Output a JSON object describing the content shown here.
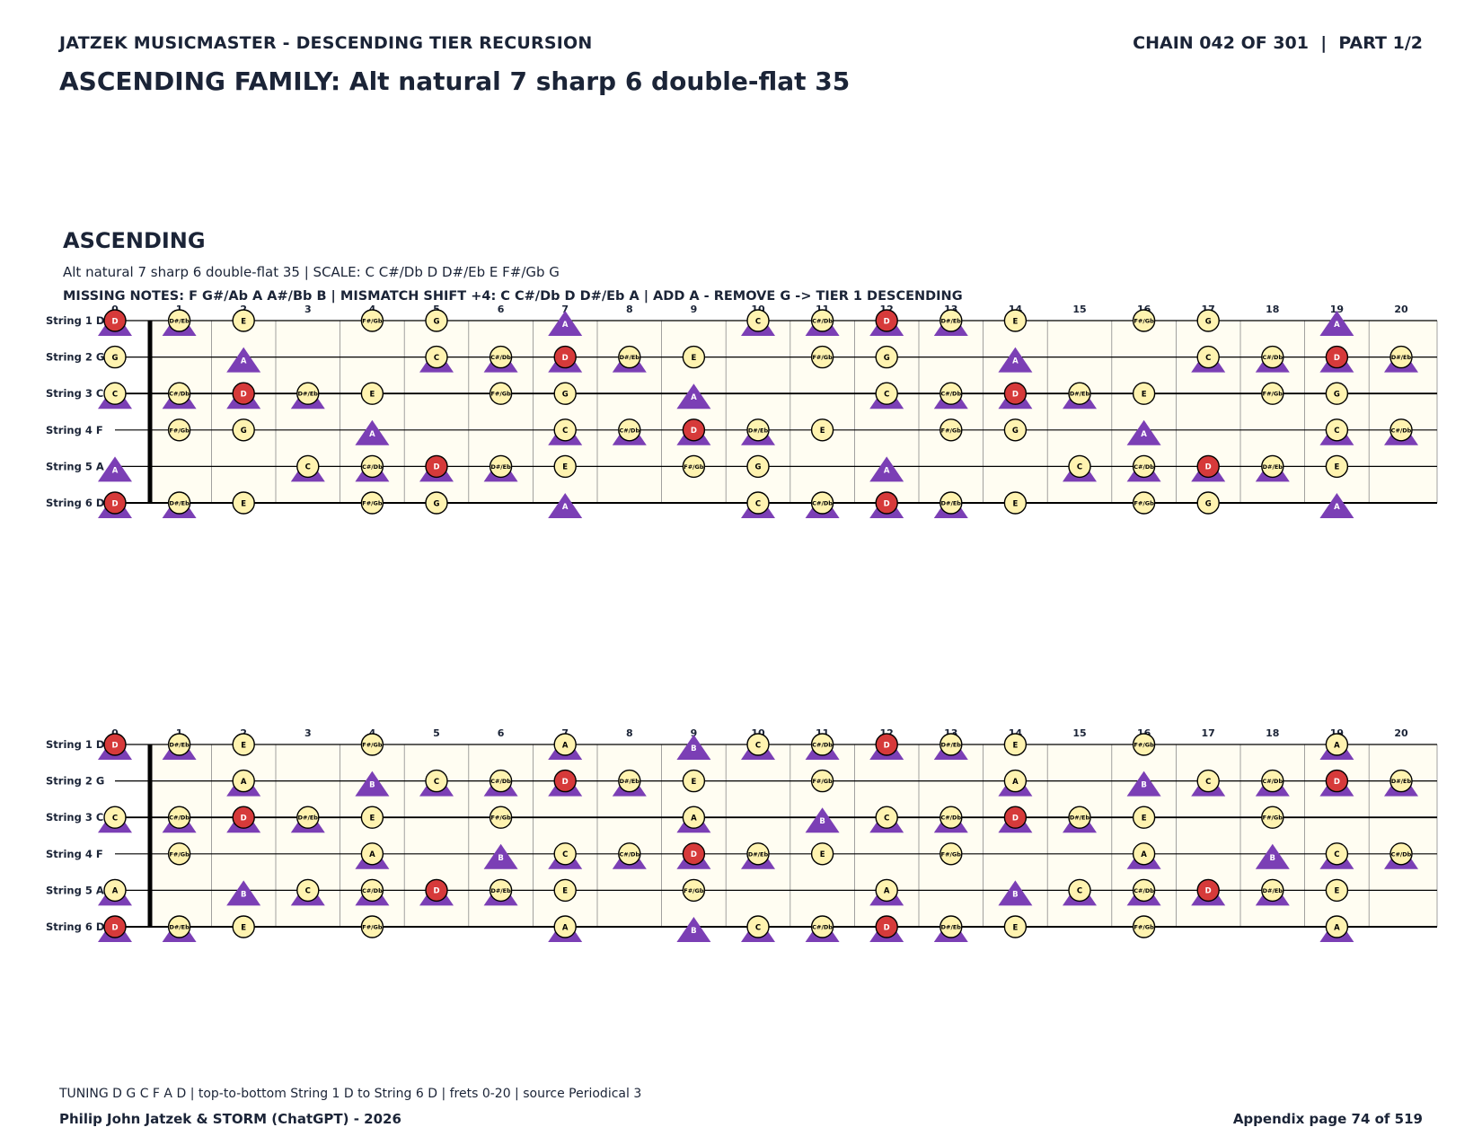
{
  "header": {
    "left": "JATZEK MUSICMASTER - DESCENDING TIER RECURSION",
    "right": "CHAIN 042 OF 301  |  PART 1/2"
  },
  "title": "ASCENDING FAMILY: Alt natural 7 sharp 6 double-flat 35",
  "section": {
    "heading": "ASCENDING",
    "line1": "Alt natural 7 sharp 6 double-flat 35  |  SCALE: C C#/Db D D#/Eb E F#/Gb G",
    "line2": "MISSING NOTES: F G#/Ab A A#/Bb B  |  MISMATCH SHIFT +4: C C#/Db D D#/Eb A  |  ADD A - REMOVE G -> TIER 1 DESCENDING"
  },
  "footer": {
    "tuning": "TUNING D G C F A D | top-to-bottom String 1 D to String 6 D | frets 0-20 | source Periodical 3",
    "authors": "Philip John Jatzek & STORM (ChatGPT) - 2026",
    "page": "Appendix page 74 of 519"
  },
  "legend_colors": {
    "scale_note_fill": "#fff3b0",
    "root_note_fill": "#d63a3a",
    "target_triangle": "#7b3fb5",
    "board_bg": "#fffdf2"
  },
  "fretboards": [
    {
      "strings": [
        {
          "label": "String 1 D",
          "tuning": "D"
        },
        {
          "label": "String 2 G",
          "tuning": "G"
        },
        {
          "label": "String 3 C",
          "tuning": "C"
        },
        {
          "label": "String 4 F",
          "tuning": "F"
        },
        {
          "label": "String 5 A",
          "tuning": "A"
        },
        {
          "label": "String 6 D",
          "tuning": "D"
        }
      ],
      "fret_numbers": [
        "0",
        "1",
        "2",
        "3",
        "4",
        "5",
        "6",
        "7",
        "8",
        "9",
        "10",
        "11",
        "12",
        "13",
        "14",
        "15",
        "16",
        "17",
        "18",
        "19",
        "20"
      ],
      "scale": [
        "C",
        "C#/Db",
        "D",
        "D#/Eb",
        "E",
        "F#/Gb",
        "G"
      ],
      "root": "D",
      "triangle_notes": [
        "A",
        "C",
        "C#/Db",
        "D",
        "D#/Eb"
      ]
    },
    {
      "strings": [
        {
          "label": "String 1 D",
          "tuning": "D"
        },
        {
          "label": "String 2 G",
          "tuning": "G"
        },
        {
          "label": "String 3 C",
          "tuning": "C"
        },
        {
          "label": "String 4 F",
          "tuning": "F"
        },
        {
          "label": "String 5 A",
          "tuning": "A"
        },
        {
          "label": "String 6 D",
          "tuning": "D"
        }
      ],
      "fret_numbers": [
        "0",
        "1",
        "2",
        "3",
        "4",
        "5",
        "6",
        "7",
        "8",
        "9",
        "10",
        "11",
        "12",
        "13",
        "14",
        "15",
        "16",
        "17",
        "18",
        "19",
        "20"
      ],
      "scale": [
        "C",
        "C#/Db",
        "D",
        "D#/Eb",
        "E",
        "F#/Gb",
        "A"
      ],
      "root": "D",
      "triangle_notes": [
        "A",
        "B",
        "C",
        "C#/Db",
        "D",
        "D#/Eb"
      ]
    }
  ]
}
